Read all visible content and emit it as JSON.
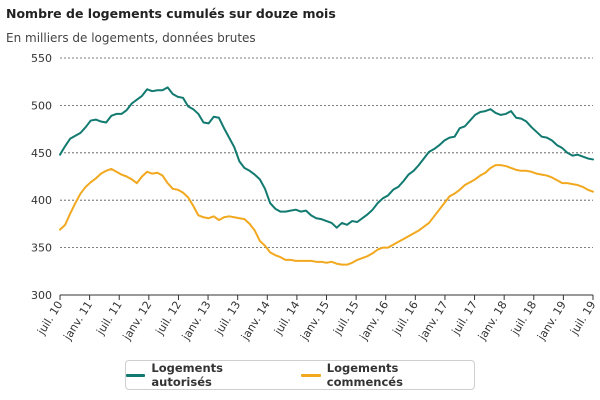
{
  "header": {
    "title": "Nombre de logements cumulés sur douze mois",
    "subtitle": "En milliers de logements, données brutes"
  },
  "colors": {
    "authorized": "#127a70",
    "started": "#f2a81f",
    "grid": "#555555",
    "axis": "#333333"
  },
  "chart_data": {
    "type": "line",
    "title": "Nombre de logements cumulés sur douze mois",
    "subtitle": "En milliers de logements, données brutes",
    "xlabel": "",
    "ylabel": "",
    "ylim": [
      300,
      550
    ],
    "yticks": [
      300,
      350,
      400,
      450,
      500,
      550
    ],
    "grid": true,
    "legend_position": "bottom-center",
    "xticks": [
      "juil. 10",
      "janv. 11",
      "juil. 11",
      "janv. 12",
      "juil. 12",
      "janv. 13",
      "juil. 13",
      "janv. 14",
      "juil. 14",
      "janv. 15",
      "juil. 15",
      "janv. 16",
      "juil. 16",
      "janv. 17",
      "juil. 17",
      "janv. 18",
      "juil. 18",
      "janv. 19",
      "juil. 19"
    ],
    "series": [
      {
        "name": "Logements autorisés",
        "color": "#127a70",
        "values": [
          448,
          457,
          465,
          468,
          471,
          477,
          484,
          485,
          483,
          482,
          489,
          491,
          491,
          495,
          502,
          506,
          510,
          517,
          515,
          516,
          516,
          519,
          512,
          509,
          508,
          499,
          496,
          491,
          482,
          481,
          488,
          487,
          476,
          466,
          456,
          441,
          434,
          431,
          427,
          422,
          412,
          397,
          391,
          388,
          388,
          389,
          390,
          388,
          389,
          384,
          381,
          380,
          378,
          376,
          371,
          376,
          374,
          378,
          377,
          381,
          385,
          390,
          397,
          402,
          405,
          411,
          414,
          420,
          427,
          431,
          437,
          444,
          451,
          454,
          458,
          463,
          466,
          467,
          476,
          478,
          484,
          490,
          493,
          494,
          496,
          492,
          490,
          491,
          494,
          487,
          486,
          483,
          477,
          472,
          467,
          466,
          463,
          458,
          455,
          450,
          447,
          448,
          446,
          444,
          443
        ]
      },
      {
        "name": "Logements commencés",
        "color": "#f2a81f",
        "values": [
          369,
          374,
          386,
          397,
          407,
          414,
          419,
          423,
          428,
          431,
          433,
          430,
          427,
          425,
          422,
          418,
          425,
          430,
          428,
          429,
          426,
          418,
          412,
          411,
          408,
          403,
          394,
          384,
          382,
          381,
          383,
          379,
          382,
          383,
          382,
          381,
          380,
          375,
          368,
          357,
          352,
          345,
          342,
          340,
          337,
          337,
          336,
          336,
          336,
          336,
          335,
          335,
          334,
          335,
          333,
          332,
          332,
          334,
          337,
          339,
          341,
          344,
          348,
          350,
          350,
          353,
          356,
          359,
          362,
          365,
          368,
          372,
          376,
          383,
          390,
          397,
          404,
          407,
          411,
          416,
          419,
          422,
          426,
          429,
          434,
          437,
          437,
          436,
          434,
          432,
          431,
          431,
          430,
          428,
          427,
          426,
          424,
          421,
          418,
          418,
          417,
          416,
          414,
          411,
          409
        ]
      }
    ]
  },
  "legend": {
    "authorized_label": "Logements autorisés",
    "started_label": "Logements commencés"
  }
}
